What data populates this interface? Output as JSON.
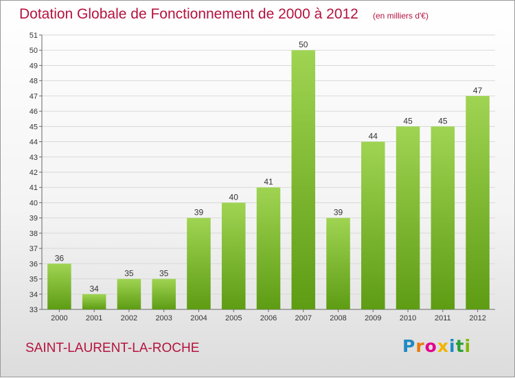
{
  "header": {
    "title": "Dotation Globale de Fonctionnement de 2000 à 2012",
    "unit": "(en milliers d'€)"
  },
  "footer": {
    "commune": "SAINT-LAURENT-LA-ROCHE",
    "logo_letters": [
      "P",
      "r",
      "o",
      "x",
      "i",
      "t",
      "i"
    ]
  },
  "colors": {
    "title": "#b5123e",
    "bar_light": "#9fd452",
    "bar_dark": "#5e9c14",
    "grid": "#d8d8d8"
  },
  "chart_data": {
    "type": "bar",
    "categories": [
      "2000",
      "2001",
      "2002",
      "2003",
      "2004",
      "2005",
      "2006",
      "2007",
      "2008",
      "2009",
      "2010",
      "2011",
      "2012"
    ],
    "values": [
      36,
      34,
      35,
      35,
      39,
      40,
      41,
      50,
      39,
      44,
      45,
      45,
      47
    ],
    "ylim": [
      33,
      51
    ],
    "yticks": [
      33,
      34,
      35,
      36,
      37,
      38,
      39,
      40,
      41,
      42,
      43,
      44,
      45,
      46,
      47,
      48,
      49,
      50,
      51
    ],
    "grid": true,
    "data_labels": true
  }
}
